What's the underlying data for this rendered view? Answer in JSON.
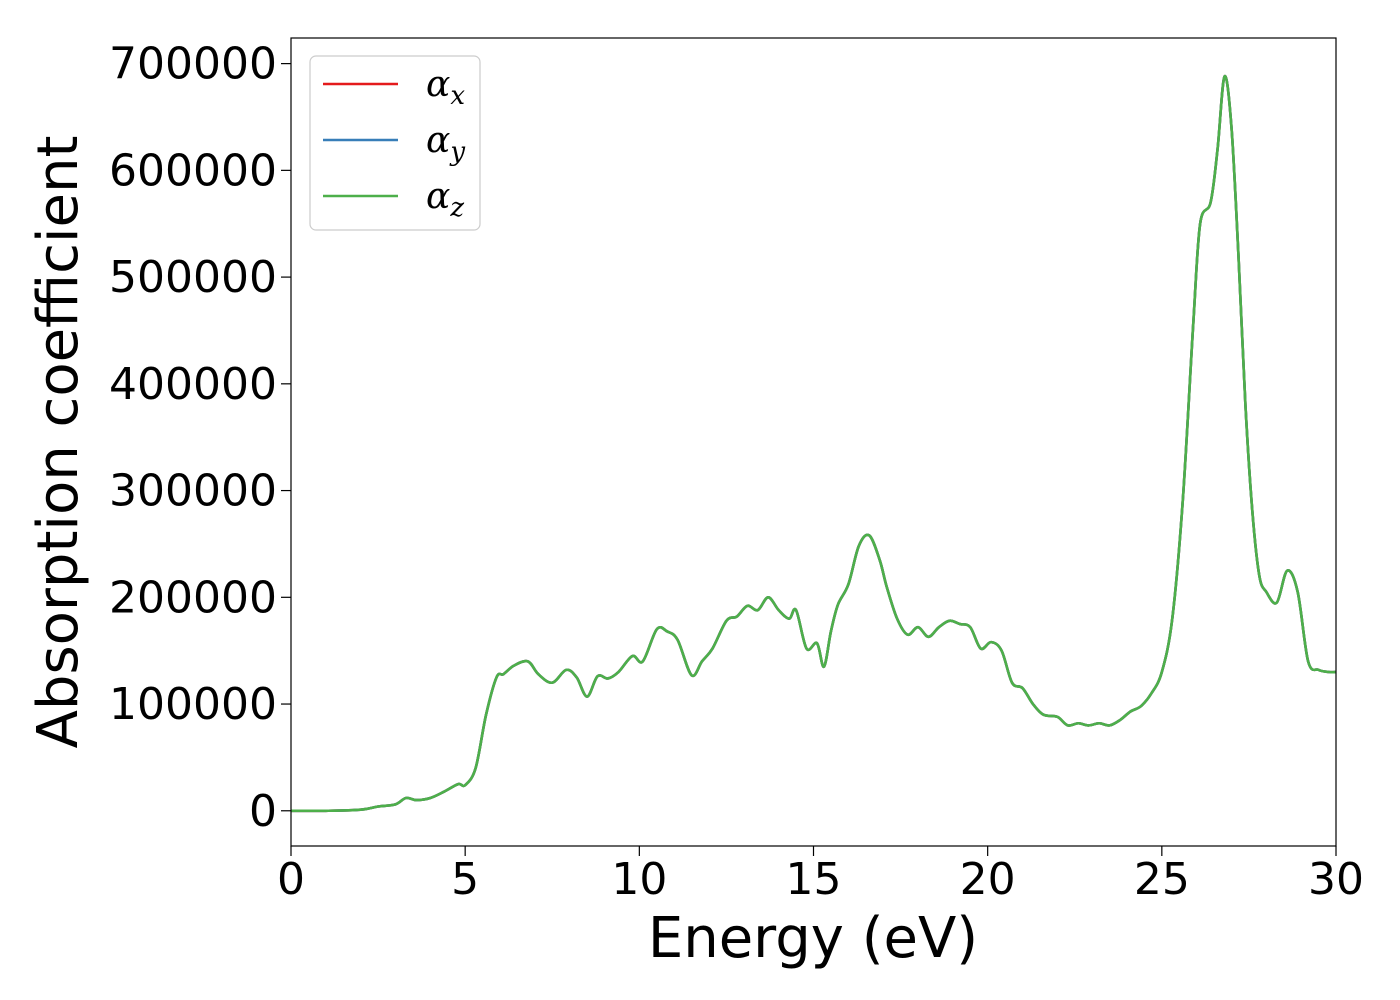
{
  "chart_data": {
    "type": "line",
    "title": "",
    "xlabel": "Energy (eV)",
    "ylabel": "Absorption coefficient",
    "xlim": [
      0,
      30
    ],
    "ylim": [
      -33000,
      724000
    ],
    "xticks": [
      0,
      5,
      10,
      15,
      20,
      25,
      30
    ],
    "yticks": [
      0,
      100000,
      200000,
      300000,
      400000,
      500000,
      600000,
      700000
    ],
    "grid": false,
    "legend_position": "top-left",
    "colors": {
      "x": "#e41a1c",
      "y": "#377eb8",
      "z": "#4daf4a"
    },
    "legend": [
      {
        "key": "x",
        "symbol": "α",
        "sub": "x"
      },
      {
        "key": "y",
        "symbol": "α",
        "sub": "y"
      },
      {
        "key": "z",
        "symbol": "α",
        "sub": "z"
      }
    ],
    "x": [
      0,
      1,
      2,
      2.5,
      3,
      3.3,
      3.6,
      4,
      4.4,
      4.8,
      5,
      5.3,
      5.6,
      5.9,
      6.1,
      6.4,
      6.8,
      7.1,
      7.5,
      7.9,
      8.2,
      8.5,
      8.8,
      9.1,
      9.4,
      9.8,
      10.1,
      10.5,
      10.8,
      11.1,
      11.5,
      11.8,
      12.1,
      12.5,
      12.8,
      13.1,
      13.4,
      13.7,
      14,
      14.3,
      14.5,
      14.8,
      15.1,
      15.3,
      15.5,
      15.7,
      16,
      16.3,
      16.6,
      16.9,
      17.1,
      17.4,
      17.7,
      18,
      18.3,
      18.6,
      18.9,
      19.2,
      19.5,
      19.8,
      20.1,
      20.4,
      20.7,
      21,
      21.3,
      21.6,
      22,
      22.3,
      22.6,
      22.9,
      23.2,
      23.5,
      23.8,
      24.1,
      24.4,
      24.7,
      25,
      25.3,
      25.6,
      25.9,
      26.1,
      26.4,
      26.6,
      26.8,
      27,
      27.2,
      27.4,
      27.6,
      27.8,
      28,
      28.3,
      28.6,
      28.9,
      29.2,
      29.5,
      29.8,
      30
    ],
    "series": [
      {
        "key": "x",
        "values": [
          0,
          0,
          1000,
          4000,
          6000,
          12000,
          10000,
          12000,
          18000,
          25000,
          24000,
          40000,
          90000,
          125000,
          128000,
          136000,
          140000,
          128000,
          120000,
          132000,
          125000,
          107000,
          126000,
          124000,
          130000,
          145000,
          140000,
          170000,
          168000,
          160000,
          127000,
          140000,
          152000,
          178000,
          182000,
          192000,
          188000,
          200000,
          188000,
          180000,
          188000,
          152000,
          157000,
          135000,
          168000,
          193000,
          212000,
          248000,
          258000,
          235000,
          210000,
          180000,
          165000,
          172000,
          163000,
          172000,
          178000,
          175000,
          172000,
          152000,
          158000,
          150000,
          120000,
          115000,
          100000,
          90000,
          88000,
          80000,
          82000,
          80000,
          82000,
          80000,
          85000,
          93000,
          98000,
          110000,
          130000,
          180000,
          290000,
          455000,
          550000,
          570000,
          620000,
          688000,
          640000,
          520000,
          380000,
          280000,
          220000,
          205000,
          195000,
          225000,
          205000,
          140000,
          132000,
          130000,
          130000
        ]
      },
      {
        "key": "y",
        "values": [
          0,
          0,
          1000,
          4000,
          6000,
          12000,
          10000,
          12000,
          18000,
          25000,
          24000,
          40000,
          90000,
          125000,
          128000,
          136000,
          140000,
          128000,
          120000,
          132000,
          125000,
          107000,
          126000,
          124000,
          130000,
          145000,
          140000,
          170000,
          168000,
          160000,
          127000,
          140000,
          152000,
          178000,
          182000,
          192000,
          188000,
          200000,
          188000,
          180000,
          188000,
          152000,
          157000,
          135000,
          168000,
          193000,
          212000,
          248000,
          258000,
          235000,
          210000,
          180000,
          165000,
          172000,
          163000,
          172000,
          178000,
          175000,
          172000,
          152000,
          158000,
          150000,
          120000,
          115000,
          100000,
          90000,
          88000,
          80000,
          82000,
          80000,
          82000,
          80000,
          85000,
          93000,
          98000,
          110000,
          130000,
          180000,
          290000,
          455000,
          550000,
          570000,
          620000,
          688000,
          640000,
          520000,
          380000,
          280000,
          220000,
          205000,
          195000,
          225000,
          205000,
          140000,
          132000,
          130000,
          130000
        ]
      },
      {
        "key": "z",
        "values": [
          0,
          0,
          1000,
          4000,
          6000,
          12000,
          10000,
          12000,
          18000,
          25000,
          24000,
          40000,
          90000,
          125000,
          128000,
          136000,
          140000,
          128000,
          120000,
          132000,
          125000,
          107000,
          126000,
          124000,
          130000,
          145000,
          140000,
          170000,
          168000,
          160000,
          127000,
          140000,
          152000,
          178000,
          182000,
          192000,
          188000,
          200000,
          188000,
          180000,
          188000,
          152000,
          157000,
          135000,
          168000,
          193000,
          212000,
          248000,
          258000,
          235000,
          210000,
          180000,
          165000,
          172000,
          163000,
          172000,
          178000,
          175000,
          172000,
          152000,
          158000,
          150000,
          120000,
          115000,
          100000,
          90000,
          88000,
          80000,
          82000,
          80000,
          82000,
          80000,
          85000,
          93000,
          98000,
          110000,
          130000,
          180000,
          290000,
          455000,
          550000,
          570000,
          620000,
          688000,
          640000,
          520000,
          380000,
          280000,
          220000,
          205000,
          195000,
          225000,
          205000,
          140000,
          132000,
          130000,
          130000
        ]
      }
    ]
  }
}
